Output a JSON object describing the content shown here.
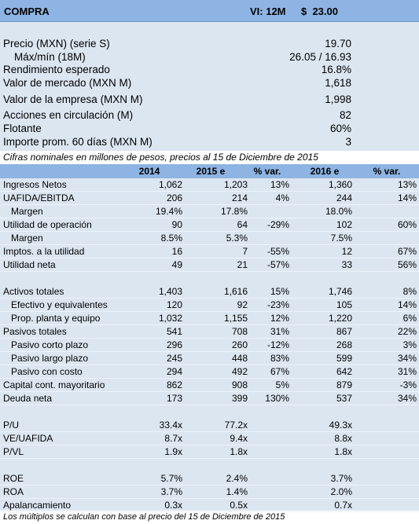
{
  "header": {
    "title": "COMPRA",
    "target_label": "VI: 12M",
    "target_value": "$  23.00"
  },
  "summary": [
    {
      "label": "Precio (MXN) (serie S)",
      "value": "19.70"
    },
    {
      "label": "Máx/mín (18M)",
      "value": "26.05 / 16.93",
      "indent": true
    },
    {
      "label": "Rendimiento esperado",
      "value": "16.8%"
    },
    {
      "label": "Valor de mercado (MXN M)",
      "value": "1,618"
    },
    {
      "label": "Valor de la empresa (MXN M)",
      "value": "1,998"
    },
    {
      "label": "Acciones en circulación (M)",
      "value": "82"
    },
    {
      "label": "Flotante",
      "value": "60%"
    },
    {
      "label": "Importe prom. 60 días (MXN M)",
      "value": "3"
    }
  ],
  "note": "Cifras nominales en millones de pesos, precios al 15 de Diciembre de 2015",
  "table": {
    "columns": [
      "2014",
      "2015 e",
      "% var.",
      "2016 e",
      "% var."
    ],
    "groups": [
      [
        {
          "label": "Ingresos Netos",
          "cells": [
            "1,062",
            "1,203",
            "13%",
            "1,360",
            "13%"
          ]
        },
        {
          "label": "UAFIDA/EBITDA",
          "cells": [
            "206",
            "214",
            "4%",
            "244",
            "14%"
          ]
        },
        {
          "label": "Margen",
          "indent": true,
          "cells": [
            "19.4%",
            "17.8%",
            null,
            "18.0%",
            null
          ]
        },
        {
          "label": "Utilidad de operación",
          "cells": [
            "90",
            "64",
            "-29%",
            "102",
            "60%"
          ]
        },
        {
          "label": "Margen",
          "indent": true,
          "cells": [
            "8.5%",
            "5.3%",
            null,
            "7.5%",
            null
          ]
        },
        {
          "label": "Imptos. a la utilidad",
          "cells": [
            "16",
            "7",
            "-55%",
            "12",
            "67%"
          ]
        },
        {
          "label": "Utilidad neta",
          "cells": [
            "49",
            "21",
            "-57%",
            "33",
            "56%"
          ]
        }
      ],
      [
        {
          "label": "Activos totales",
          "cells": [
            "1,403",
            "1,616",
            "15%",
            "1,746",
            "8%"
          ]
        },
        {
          "label": "Efectivo y equivalentes",
          "indent": true,
          "cells": [
            "120",
            "92",
            "-23%",
            "105",
            "14%"
          ]
        },
        {
          "label": "Prop. planta y equipo",
          "indent": true,
          "cells": [
            "1,032",
            "1,155",
            "12%",
            "1,220",
            "6%"
          ]
        },
        {
          "label": "Pasivos totales",
          "cells": [
            "541",
            "708",
            "31%",
            "867",
            "22%"
          ]
        },
        {
          "label": "Pasivo corto plazo",
          "indent": true,
          "cells": [
            "296",
            "260",
            "-12%",
            "268",
            "3%"
          ]
        },
        {
          "label": "Pasivo largo plazo",
          "indent": true,
          "cells": [
            "245",
            "448",
            "83%",
            "599",
            "34%"
          ]
        },
        {
          "label": "Pasivo con costo",
          "indent": true,
          "cells": [
            "294",
            "492",
            "67%",
            "642",
            "31%"
          ]
        },
        {
          "label": "Capital cont. mayoritario",
          "cells": [
            "862",
            "908",
            "5%",
            "879",
            "-3%"
          ]
        },
        {
          "label": "Deuda neta",
          "cells": [
            "173",
            "399",
            "130%",
            "537",
            "34%"
          ]
        }
      ],
      [
        {
          "label": "P/U",
          "cells": [
            "33.4x",
            "77.2x",
            null,
            "49.3x",
            null
          ]
        },
        {
          "label": "VE/UAFIDA",
          "cells": [
            "8.7x",
            "9.4x",
            null,
            "8.8x",
            null
          ]
        },
        {
          "label": "P/VL",
          "cells": [
            "1.9x",
            "1.8x",
            null,
            "1.8x",
            null
          ]
        }
      ],
      [
        {
          "label": "ROE",
          "cells": [
            "5.7%",
            "2.4%",
            null,
            "3.7%",
            null
          ]
        },
        {
          "label": "ROA",
          "cells": [
            "3.7%",
            "1.4%",
            null,
            "2.0%",
            null
          ]
        },
        {
          "label": "Apalancamiento",
          "cells": [
            "0.3x",
            "0.5x",
            null,
            "0.7x",
            null
          ]
        }
      ]
    ]
  },
  "footnote": "Los múltiplos se calculan con base al precio del 15 de Diciembre de 2015"
}
